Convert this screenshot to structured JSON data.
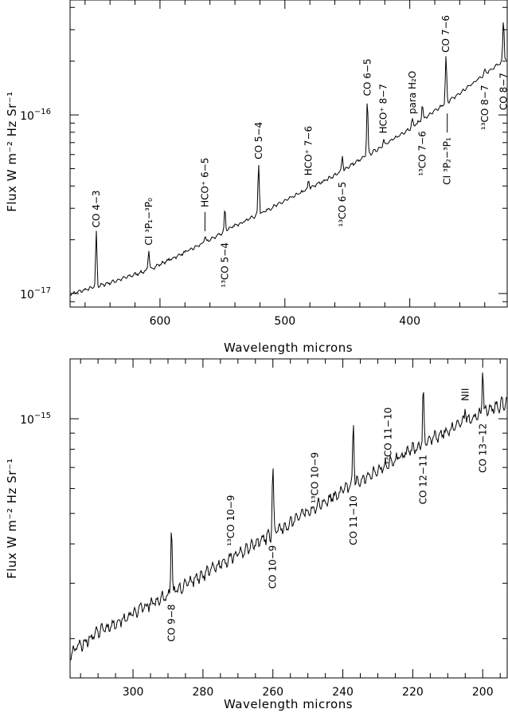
{
  "chart_data": [
    {
      "type": "line",
      "xlabel": "Wavelength microns",
      "ylabel": "Flux W m⁻² Hz Sr⁻¹",
      "x_reversed": true,
      "xlim": [
        672,
        322
      ],
      "ylim": [
        8.4e-18,
        4.4e-16
      ],
      "yscale": "log",
      "x_ticks": [
        600,
        500,
        400
      ],
      "y_ticks": [
        {
          "value": 1e-17,
          "mantissa": "10",
          "exponent": "−17"
        },
        {
          "value": 1e-16,
          "mantissa": "10",
          "exponent": "−16"
        }
      ],
      "continuum": [
        [
          670,
          1e-17
        ],
        [
          640,
          1.15e-17
        ],
        [
          610,
          1.35e-17
        ],
        [
          580,
          1.7e-17
        ],
        [
          560,
          2e-17
        ],
        [
          540,
          2.4e-17
        ],
        [
          520,
          2.8e-17
        ],
        [
          500,
          3.3e-17
        ],
        [
          480,
          3.9e-17
        ],
        [
          460,
          4.6e-17
        ],
        [
          440,
          5.6e-17
        ],
        [
          420,
          6.8e-17
        ],
        [
          400,
          8.4e-17
        ],
        [
          380,
          1.05e-16
        ],
        [
          360,
          1.32e-16
        ],
        [
          340,
          1.7e-16
        ],
        [
          330,
          1.9e-16
        ],
        [
          322,
          2.05e-16
        ]
      ],
      "lines": [
        {
          "x": 651,
          "peak": 2.2e-17,
          "label": "CO 4−3",
          "pos": "above"
        },
        {
          "x": 609,
          "peak": 1.75e-17,
          "label": "CI ³P₁−³P₀",
          "pos": "above"
        },
        {
          "x": 548,
          "peak": 3e-17,
          "label": "¹³CO 5−4",
          "pos": "below"
        },
        {
          "x": 564,
          "peak": 2.1e-17,
          "label": "HCO⁺ 6−5",
          "pos": "above",
          "leader": true
        },
        {
          "x": 521,
          "peak": 5.3e-17,
          "label": "CO 5−4",
          "pos": "above"
        },
        {
          "x": 481,
          "peak": 4.3e-17,
          "label": "HCO⁺ 7−6",
          "pos": "above"
        },
        {
          "x": 454,
          "peak": 5.9e-17,
          "label": "¹³CO 6−5",
          "pos": "below"
        },
        {
          "x": 434,
          "peak": 1.2e-16,
          "label": "CO 6−5",
          "pos": "above"
        },
        {
          "x": 421,
          "peak": 7.4e-17,
          "label": "HCO⁺ 8−7",
          "pos": "above"
        },
        {
          "x": 398,
          "peak": 9.5e-17,
          "label": "para H₂O",
          "pos": "above"
        },
        {
          "x": 390,
          "peak": 1.15e-16,
          "label": "¹³CO 7−6",
          "pos": "below"
        },
        {
          "x": 371,
          "peak": 2.1e-16,
          "label": "CO 7−6",
          "pos": "above"
        },
        {
          "x": 370,
          "peak": 1.2e-16,
          "label": "CI ³P₂−³P₁",
          "pos": "below",
          "leader": true
        },
        {
          "x": 340,
          "peak": 1.8e-16,
          "label": "¹³CO 8−7",
          "pos": "below"
        },
        {
          "x": 325,
          "peak": 3.4e-16,
          "label": "CO 8−7",
          "pos": "below"
        }
      ]
    },
    {
      "type": "line",
      "xlabel": "Wavelength microns",
      "ylabel": "Flux W m⁻² Hz Sr⁻¹",
      "x_reversed": true,
      "xlim": [
        318,
        193
      ],
      "ylim": [
        1.5e-16,
        1.55e-15
      ],
      "yscale": "log",
      "x_ticks": [
        300,
        280,
        260,
        240,
        220,
        200
      ],
      "y_ticks": [
        {
          "value": 1e-15,
          "mantissa": "10",
          "exponent": "−15"
        }
      ],
      "continuum": [
        [
          318,
          1.8e-16
        ],
        [
          310,
          2.1e-16
        ],
        [
          300,
          2.4e-16
        ],
        [
          290,
          2.75e-16
        ],
        [
          280,
          3.2e-16
        ],
        [
          270,
          3.7e-16
        ],
        [
          260,
          4.3e-16
        ],
        [
          250,
          5.1e-16
        ],
        [
          240,
          5.9e-16
        ],
        [
          230,
          6.9e-16
        ],
        [
          220,
          8e-16
        ],
        [
          210,
          9.2e-16
        ],
        [
          200,
          1.05e-15
        ],
        [
          193,
          1.13e-15
        ]
      ],
      "lines": [
        {
          "x": 289,
          "peak": 4.6e-16,
          "label": "CO 9−8",
          "pos": "below"
        },
        {
          "x": 272,
          "peak": 3.8e-16,
          "label": "¹³CO 10−9",
          "pos": "above"
        },
        {
          "x": 260,
          "peak": 7.1e-16,
          "label": "CO 10−9",
          "pos": "below"
        },
        {
          "x": 248,
          "peak": 5.2e-16,
          "label": "¹³CO 10−9",
          "pos": "above"
        },
        {
          "x": 237,
          "peak": 9.7e-16,
          "label": "CO 11−10",
          "pos": "below"
        },
        {
          "x": 227,
          "peak": 6.9e-16,
          "label": "¹³CO 11−10",
          "pos": "above"
        },
        {
          "x": 217,
          "peak": 1.25e-15,
          "label": "CO 12−11",
          "pos": "below"
        },
        {
          "x": 205,
          "peak": 1.1e-15,
          "label": "NII",
          "pos": "above"
        },
        {
          "x": 200,
          "peak": 1.45e-15,
          "label": "CO 13−12",
          "pos": "below"
        }
      ]
    }
  ]
}
